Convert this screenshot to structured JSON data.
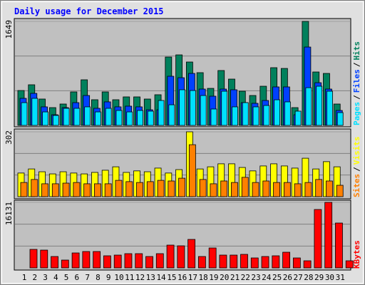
{
  "chart_data": [
    {
      "type": "bar",
      "title": "Daily usage for December 2015",
      "ylim": [
        0,
        1649
      ],
      "yticks": [
        1649
      ],
      "legend_separator": "/",
      "series": [
        {
          "name": "Hits",
          "color": "#00805c",
          "values": [
            553,
            644,
            418,
            282,
            339,
            531,
            723,
            407,
            531,
            407,
            452,
            452,
            418,
            486,
            1084,
            1118,
            1005,
            836,
            587,
            870,
            734,
            542,
            474,
            621,
            915,
            903,
            282,
            1649,
            847,
            824,
            339
          ]
        },
        {
          "name": "Files",
          "color": "#0040ff",
          "values": [
            429,
            508,
            294,
            169,
            282,
            361,
            474,
            271,
            373,
            294,
            305,
            294,
            248,
            248,
            779,
            756,
            824,
            576,
            463,
            576,
            565,
            361,
            350,
            395,
            610,
            610,
            169,
            1242,
            677,
            576,
            237
          ]
        },
        {
          "name": "Pages",
          "color": "#00e0ff",
          "values": [
            361,
            429,
            214,
            158,
            271,
            271,
            294,
            214,
            271,
            237,
            214,
            237,
            226,
            395,
            327,
            565,
            553,
            474,
            260,
            542,
            294,
            361,
            294,
            316,
            406,
            373,
            226,
            598,
            621,
            542,
            203
          ]
        }
      ]
    },
    {
      "type": "bar",
      "ylim": [
        0,
        302
      ],
      "yticks": [
        302
      ],
      "legend_separator": "/",
      "series": [
        {
          "name": "Visits",
          "color": "#ffff00",
          "values": [
            110,
            129,
            116,
            106,
            116,
            110,
            106,
            113,
            123,
            139,
            113,
            120,
            116,
            133,
            110,
            126,
            302,
            129,
            139,
            153,
            153,
            136,
            120,
            143,
            153,
            143,
            133,
            179,
            129,
            163,
            139
          ]
        },
        {
          "name": "Sites",
          "color": "#ff8000",
          "values": [
            66,
            80,
            60,
            60,
            63,
            66,
            60,
            60,
            60,
            76,
            70,
            66,
            70,
            76,
            73,
            86,
            242,
            80,
            60,
            73,
            66,
            90,
            66,
            73,
            66,
            66,
            60,
            66,
            80,
            73,
            53
          ]
        }
      ]
    },
    {
      "type": "bar",
      "ylim": [
        0,
        16131
      ],
      "yticks": [
        16131
      ],
      "categories": [
        "1",
        "2",
        "3",
        "4",
        "5",
        "6",
        "7",
        "8",
        "9",
        "10",
        "11",
        "12",
        "13",
        "14",
        "15",
        "16",
        "17",
        "18",
        "19",
        "20",
        "21",
        "22",
        "23",
        "24",
        "25",
        "26",
        "27",
        "28",
        "29",
        "30",
        "31"
      ],
      "category_colors": [
        "#000000",
        "#000000",
        "#000000",
        "#000000",
        "#00805c",
        "#00805c",
        "#000000",
        "#000000",
        "#000000",
        "#000000",
        "#000000",
        "#00805c",
        "#00805c",
        "#000000",
        "#000000",
        "#000000",
        "#000000",
        "#000000",
        "#00805c",
        "#00805c",
        "#000000",
        "#000000",
        "#000000",
        "#000000",
        "#000000",
        "#00805c",
        "#00805c",
        "#000000",
        "#000000",
        "#000000",
        "#000000"
      ],
      "series": [
        {
          "name": "KBytes",
          "color": "#ff0000",
          "values": [
            4558,
            4383,
            2805,
            1928,
            3681,
            4032,
            4032,
            2980,
            3155,
            3506,
            3506,
            2805,
            3506,
            5610,
            5434,
            7012,
            2805,
            4908,
            3155,
            3155,
            3331,
            2454,
            2805,
            2980,
            3857,
            2454,
            1753,
            14375,
            16131,
            11044,
            1753
          ]
        }
      ]
    }
  ]
}
